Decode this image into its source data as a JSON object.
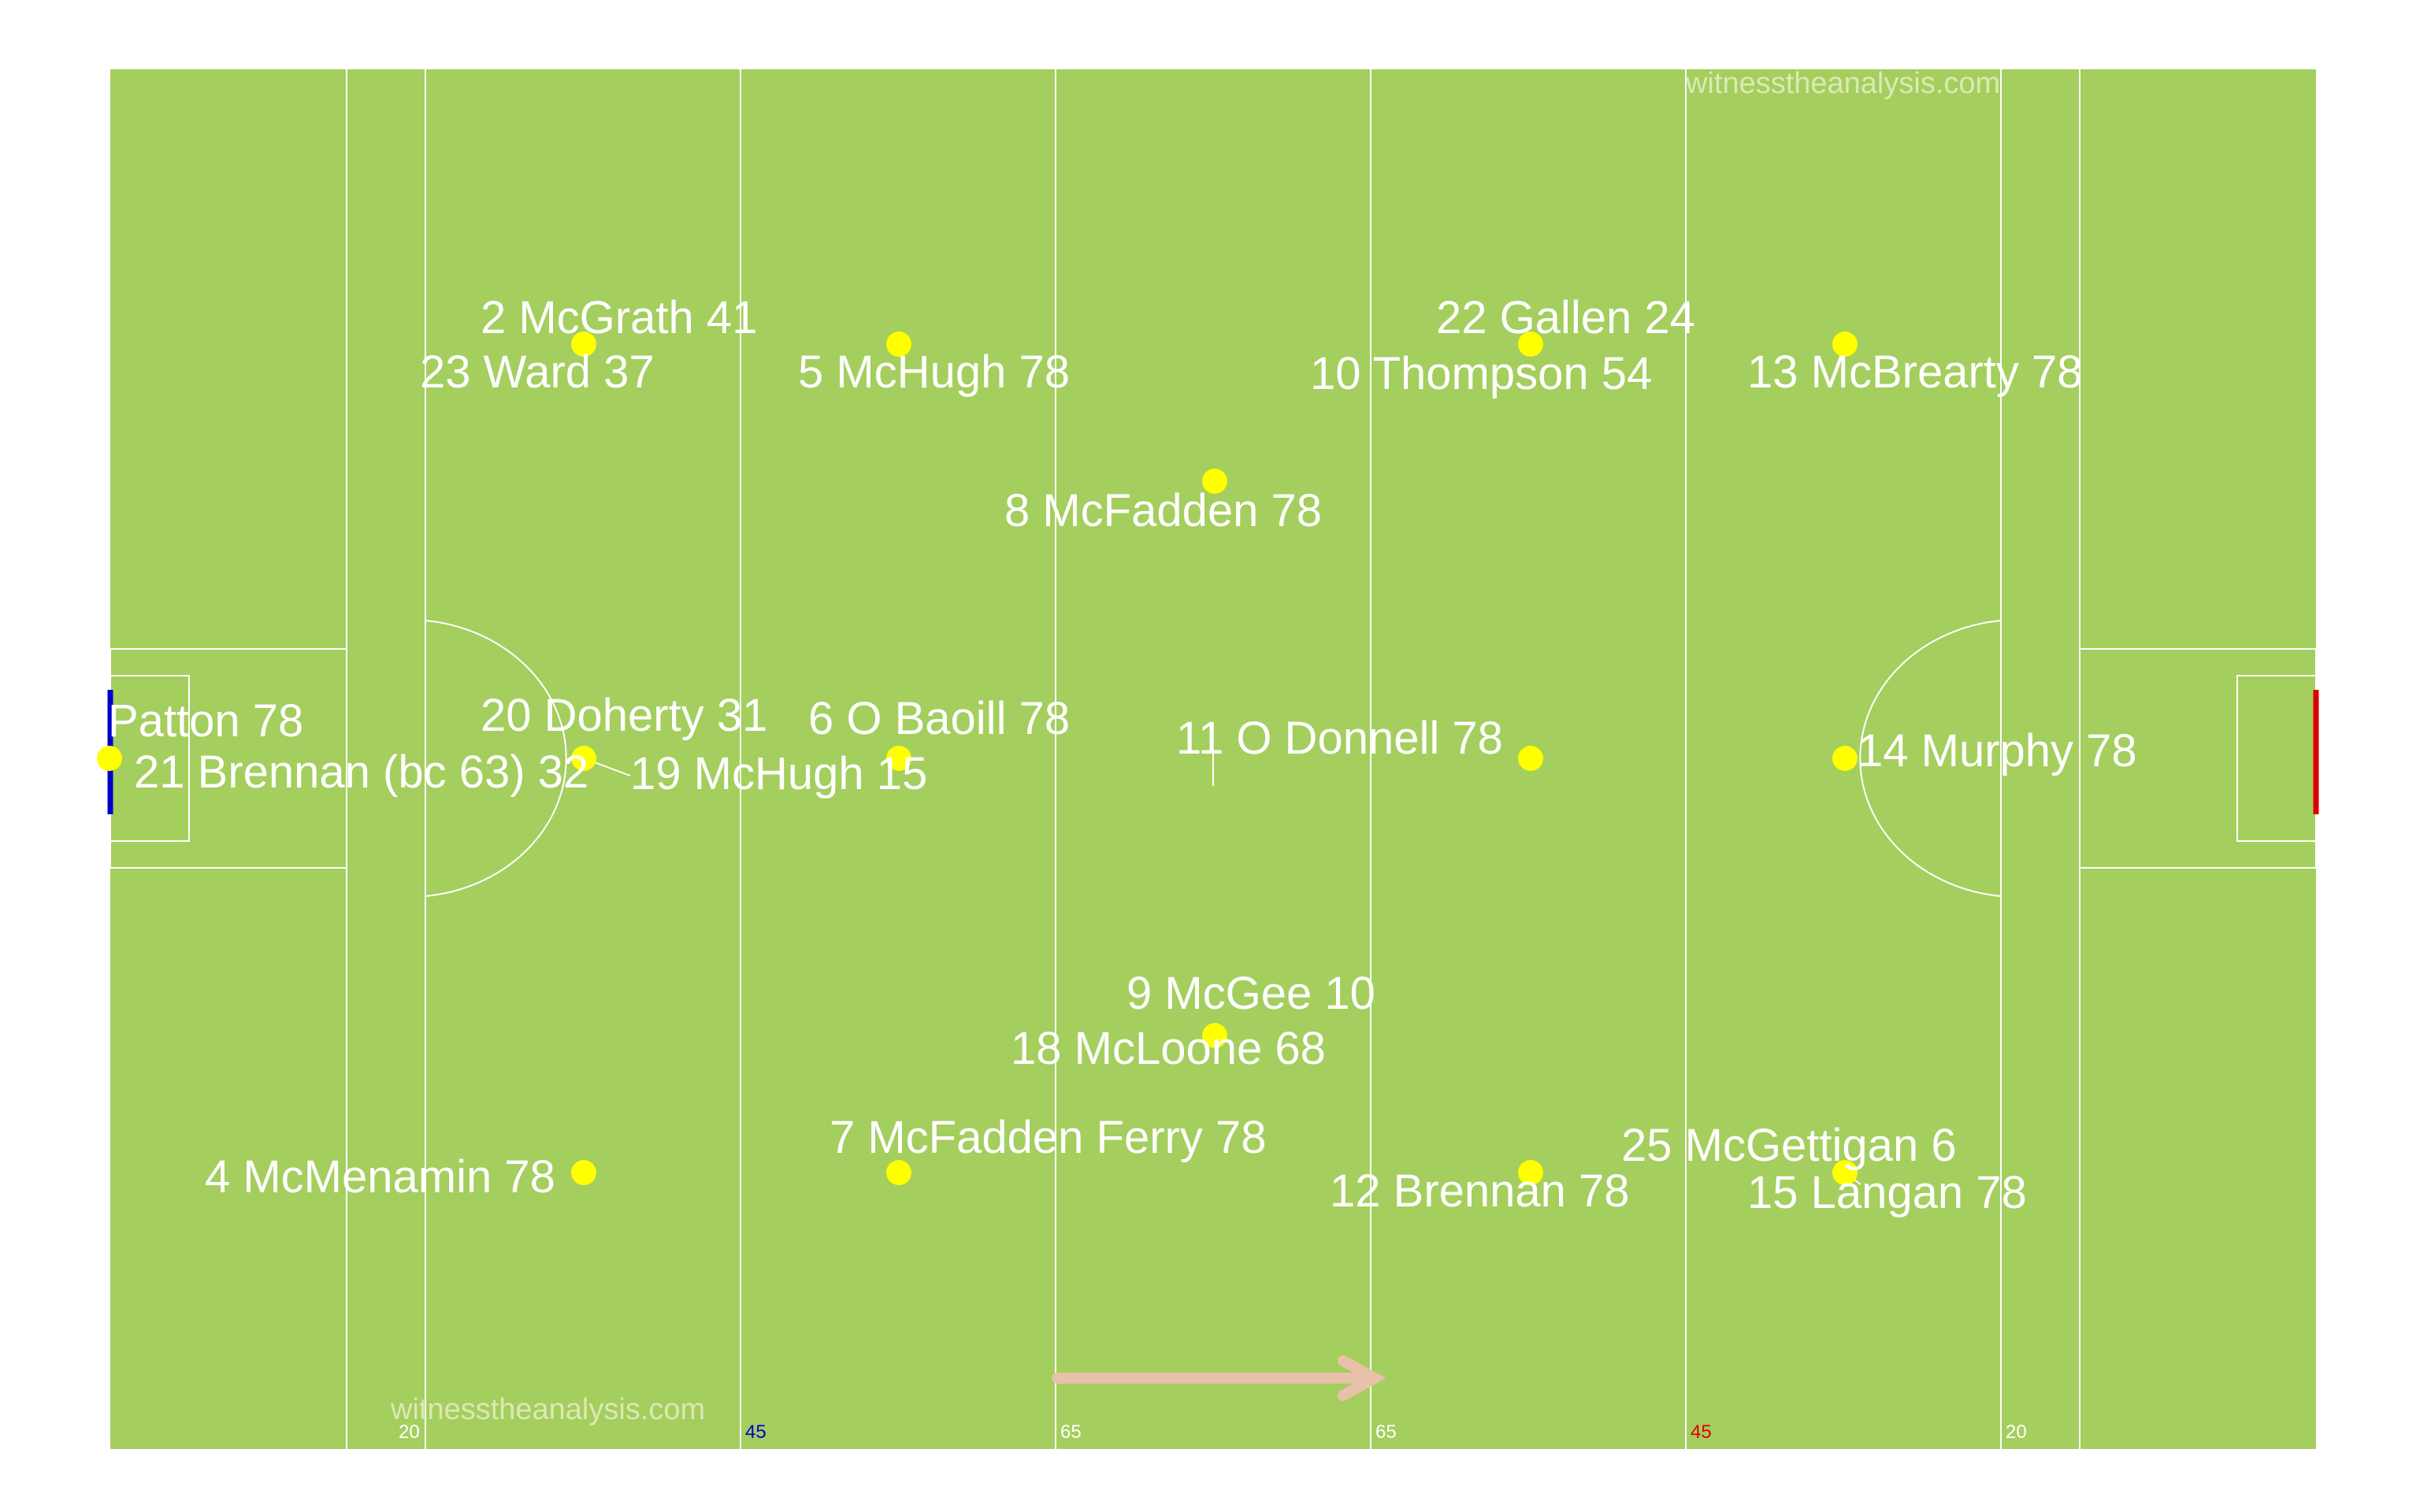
{
  "pitch": {
    "grass_color": "#a4ce5e",
    "line_color": "#ffffff",
    "player_color": "#ffff00",
    "left_goal_color": "#0000cc",
    "right_goal_color": "#dd0000",
    "arrow_color": "#e9c1aa"
  },
  "watermarks": {
    "top": "witnesstheanalysis.com",
    "bottom": "witnesstheanalysis.com"
  },
  "line_labels": [
    {
      "text": "20",
      "color": "#ffffff"
    },
    {
      "text": "45",
      "color": "#0000cc"
    },
    {
      "text": "65",
      "color": "#ffffff"
    },
    {
      "text": "65",
      "color": "#ffffff"
    },
    {
      "text": "45",
      "color": "#dd0000"
    },
    {
      "text": "20",
      "color": "#ffffff"
    }
  ],
  "players": [
    {
      "label": "Patton 78"
    },
    {
      "label": "2 McGrath 41"
    },
    {
      "label": "23 Ward 37"
    },
    {
      "label": "20 Doherty 31"
    },
    {
      "label": "21 Brennan (bc 63) 32"
    },
    {
      "label": "19 McHugh 15"
    },
    {
      "label": "4 McMenamin 78"
    },
    {
      "label": "5 McHugh 78"
    },
    {
      "label": "6 O Baoill 78"
    },
    {
      "label": "7 McFadden Ferry 78"
    },
    {
      "label": "8 McFadden 78"
    },
    {
      "label": "9 McGee 10"
    },
    {
      "label": "18 McLoone 68"
    },
    {
      "label": "22 Gallen 24"
    },
    {
      "label": "10 Thompson 54"
    },
    {
      "label": "11 O Donnell 78"
    },
    {
      "label": "12 Brennan 78"
    },
    {
      "label": "13 McBrearty 78"
    },
    {
      "label": "14 Murphy 78"
    },
    {
      "label": "25 McGettigan 6"
    },
    {
      "label": "15 Langan 78"
    }
  ]
}
